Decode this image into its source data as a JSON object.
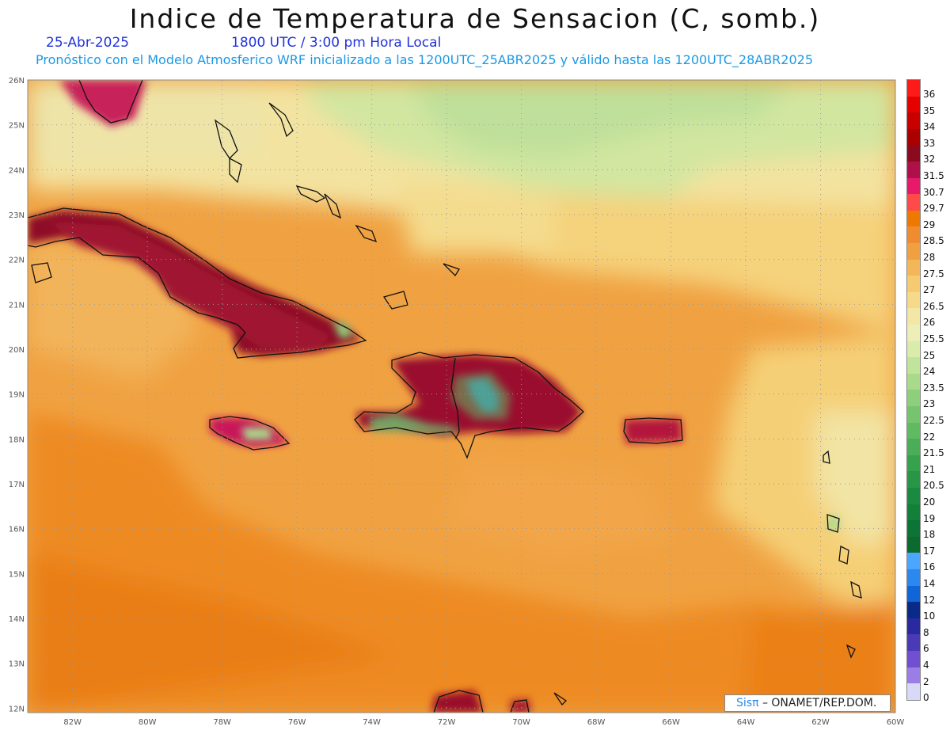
{
  "header": {
    "title": "Indice de Temperatura de Sensacion (C, somb.)",
    "date": "25-Abr-2025",
    "time": "1800 UTC / 3:00 pm Hora Local",
    "subtitle": "Pronóstico con el Modelo Atmosferico WRF inicializado a las 1200UTC_25ABR2025 y válido hasta las  1200UTC_28ABR2025"
  },
  "map": {
    "lon_range": [
      -83.2,
      -60.0
    ],
    "lat_range": [
      11.9,
      26.0
    ],
    "lon_labels": [
      "82W",
      "80W",
      "78W",
      "76W",
      "74W",
      "72W",
      "70W",
      "68W",
      "66W",
      "64W",
      "62W",
      "60W"
    ],
    "lon_values": [
      -82,
      -80,
      -78,
      -76,
      -74,
      -72,
      -70,
      -68,
      -66,
      -64,
      -62,
      -60
    ],
    "lat_labels": [
      "26N",
      "25N",
      "24N",
      "23N",
      "22N",
      "21N",
      "20N",
      "19N",
      "18N",
      "17N",
      "16N",
      "15N",
      "14N",
      "13N",
      "12N"
    ],
    "lat_values": [
      26,
      25,
      24,
      23,
      22,
      21,
      20,
      19,
      18,
      17,
      16,
      15,
      14,
      13,
      12
    ]
  },
  "colorbar": {
    "labels": [
      "36",
      "35",
      "34",
      "33",
      "32",
      "31.5",
      "30.7",
      "29.7",
      "29",
      "28.5",
      "28",
      "27.5",
      "27",
      "26.5",
      "26",
      "25.5",
      "25",
      "24",
      "23.5",
      "23",
      "22.5",
      "22",
      "21.5",
      "21",
      "20.5",
      "20",
      "19",
      "18",
      "17",
      "16",
      "14",
      "12",
      "10",
      "8",
      "6",
      "4",
      "2",
      "0"
    ],
    "colors": [
      "#ff1a1a",
      "#e60000",
      "#c80000",
      "#aa0000",
      "#8c0a1e",
      "#b0104a",
      "#e8186a",
      "#ff4a4a",
      "#ef7800",
      "#f08c30",
      "#f0a040",
      "#f3b75a",
      "#f5ca70",
      "#f7d98a",
      "#f3e7a8",
      "#eeeeb8",
      "#d9ecaa",
      "#c0e49a",
      "#a8da8a",
      "#8ecf7c",
      "#76c46e",
      "#5fba62",
      "#4aae58",
      "#37a24e",
      "#289646",
      "#1a8a40",
      "#13803a",
      "#0c7434",
      "#0a6a30",
      "#4aa6ff",
      "#2a88ee",
      "#1066d8",
      "#0a2a8a",
      "#2a2aa0",
      "#4a3ab8",
      "#7050d0",
      "#9a7ee6",
      "#d8d8f8"
    ]
  },
  "credit": {
    "logo": "Sisπ",
    "text": "– ONAMET/REP.DOM."
  }
}
